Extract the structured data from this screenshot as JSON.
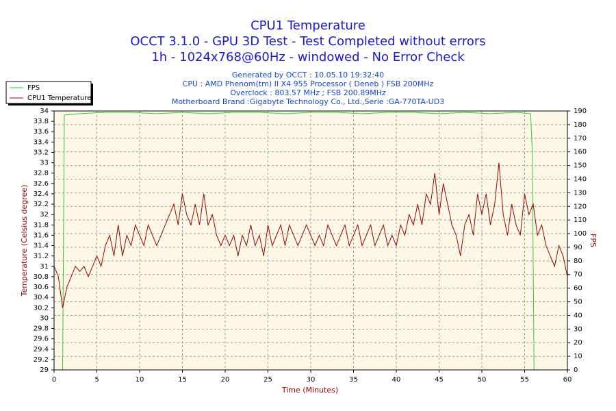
{
  "chart_data": {
    "type": "line",
    "title": [
      "CPU1 Temperature",
      "OCCT 3.1.0 - GPU 3D Test - Test Completed without errors",
      "1h - 1024x768@60Hz - windowed - No Error Check"
    ],
    "subtitle": [
      "Generated by OCCT : 10.05.10 19:32:40",
      "CPU : AMD Phenom(tm) II X4 955 Processor ( Deneb ) FSB 200MHz",
      "Overclock : 803.57 MHz ; FSB 200.89MHz",
      "Motherboard Brand :Gigabyte Technology Co., Ltd.,Serie :GA-770TA-UD3"
    ],
    "xlabel": "Time (Minutes)",
    "ylabel": "Temperature (Celsius degree)",
    "y2label": "FPS",
    "xlim": [
      0,
      60
    ],
    "xticks": [
      0,
      5,
      10,
      15,
      20,
      25,
      30,
      35,
      40,
      45,
      50,
      55,
      60
    ],
    "ylim": [
      29,
      34
    ],
    "yticks": [
      29,
      29.2,
      29.4,
      29.6,
      29.8,
      30,
      30.2,
      30.4,
      30.6,
      30.8,
      31,
      31.2,
      31.4,
      31.6,
      31.8,
      32,
      32.2,
      32.4,
      32.6,
      32.8,
      33,
      33.2,
      33.4,
      33.6,
      33.8,
      34
    ],
    "y2lim": [
      0,
      190
    ],
    "y2ticks": [
      0,
      10,
      20,
      30,
      40,
      50,
      60,
      70,
      80,
      90,
      100,
      110,
      120,
      130,
      140,
      150,
      160,
      170,
      180,
      190
    ],
    "grid": true,
    "legend": "top-left",
    "background": "#fdf8e6",
    "series": [
      {
        "name": "FPS",
        "color": "#33cc33",
        "axis": "y2",
        "x": [
          0,
          1.0,
          1.2,
          3,
          6,
          9,
          12,
          15,
          18,
          21,
          24,
          27,
          30,
          33,
          36,
          39,
          42,
          45,
          48,
          51,
          54,
          55.7,
          55.9,
          56.1,
          60
        ],
        "values": [
          0,
          0,
          187,
          188,
          189,
          189,
          188,
          189,
          188,
          189,
          189,
          188,
          189,
          189,
          188,
          189,
          189,
          188,
          189,
          188,
          189,
          188,
          160,
          0,
          0
        ]
      },
      {
        "name": "CPU1 Temperature",
        "color": "#990000",
        "x": [
          0,
          0.5,
          1,
          1.5,
          2,
          2.5,
          3,
          3.5,
          4,
          4.5,
          5,
          5.5,
          6,
          6.5,
          7,
          7.5,
          8,
          8.5,
          9,
          9.5,
          10,
          10.5,
          11,
          11.5,
          12,
          12.5,
          13,
          13.5,
          14,
          14.5,
          15,
          15.5,
          16,
          16.5,
          17,
          17.5,
          18,
          18.5,
          19,
          19.5,
          20,
          20.5,
          21,
          21.5,
          22,
          22.5,
          23,
          23.5,
          24,
          24.5,
          25,
          25.5,
          26,
          26.5,
          27,
          27.5,
          28,
          28.5,
          29,
          29.5,
          30,
          30.5,
          31,
          31.5,
          32,
          32.5,
          33,
          33.5,
          34,
          34.5,
          35,
          35.5,
          36,
          36.5,
          37,
          37.5,
          38,
          38.5,
          39,
          39.5,
          40,
          40.5,
          41,
          41.5,
          42,
          42.5,
          43,
          43.5,
          44,
          44.5,
          45,
          45.5,
          46,
          46.5,
          47,
          47.5,
          48,
          48.5,
          49,
          49.5,
          50,
          50.5,
          51,
          51.5,
          52,
          52.5,
          53,
          53.5,
          54,
          54.5,
          55,
          55.5,
          56,
          56.5,
          57,
          57.5,
          58,
          58.5,
          59,
          59.5,
          60
        ],
        "values": [
          31.0,
          30.8,
          30.2,
          30.6,
          30.8,
          31.0,
          30.9,
          31.0,
          30.8,
          31.0,
          31.2,
          31.0,
          31.4,
          31.6,
          31.2,
          31.8,
          31.2,
          31.6,
          31.4,
          31.8,
          31.6,
          31.4,
          31.8,
          31.6,
          31.4,
          31.6,
          31.8,
          32.0,
          32.2,
          31.8,
          32.4,
          32.0,
          31.8,
          32.2,
          31.8,
          32.4,
          31.8,
          32.0,
          31.6,
          31.4,
          31.6,
          31.4,
          31.6,
          31.2,
          31.6,
          31.4,
          31.8,
          31.4,
          31.6,
          31.2,
          31.8,
          31.4,
          31.6,
          31.8,
          31.4,
          31.8,
          31.6,
          31.4,
          31.6,
          31.8,
          31.6,
          31.4,
          31.6,
          31.4,
          31.8,
          31.6,
          31.4,
          31.6,
          31.8,
          31.4,
          31.6,
          31.8,
          31.4,
          31.6,
          31.8,
          31.4,
          31.6,
          31.8,
          31.4,
          31.6,
          31.4,
          31.8,
          31.6,
          32.0,
          31.8,
          32.2,
          31.8,
          32.4,
          32.2,
          32.8,
          32.0,
          32.6,
          32.2,
          31.8,
          31.6,
          31.2,
          31.8,
          32.0,
          31.6,
          32.4,
          32.0,
          32.4,
          31.8,
          32.2,
          33.0,
          32.0,
          31.6,
          32.2,
          31.8,
          31.6,
          32.4,
          32.0,
          32.2,
          31.6,
          31.8,
          31.4,
          31.2,
          31.0,
          31.4,
          31.2,
          30.8
        ]
      }
    ]
  }
}
